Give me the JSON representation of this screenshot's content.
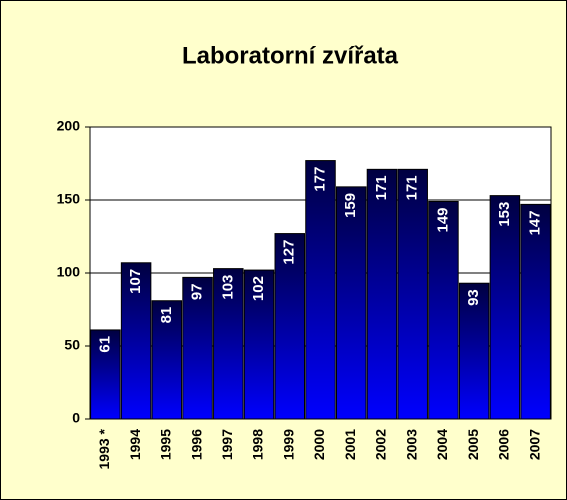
{
  "chart_data": {
    "type": "bar",
    "title": "Laboratorní zvířata",
    "categories": [
      "1993 *",
      "1994",
      "1995",
      "1996",
      "1997",
      "1998",
      "1999",
      "2000",
      "2001",
      "2002",
      "2003",
      "2004",
      "2005",
      "2006",
      "2007"
    ],
    "values": [
      61,
      107,
      81,
      97,
      103,
      102,
      127,
      177,
      159,
      171,
      171,
      149,
      93,
      153,
      147
    ],
    "color": "#0000ff",
    "ylim": [
      0,
      200
    ],
    "yticks": [
      0,
      50,
      100,
      150,
      200
    ],
    "grid": true
  }
}
